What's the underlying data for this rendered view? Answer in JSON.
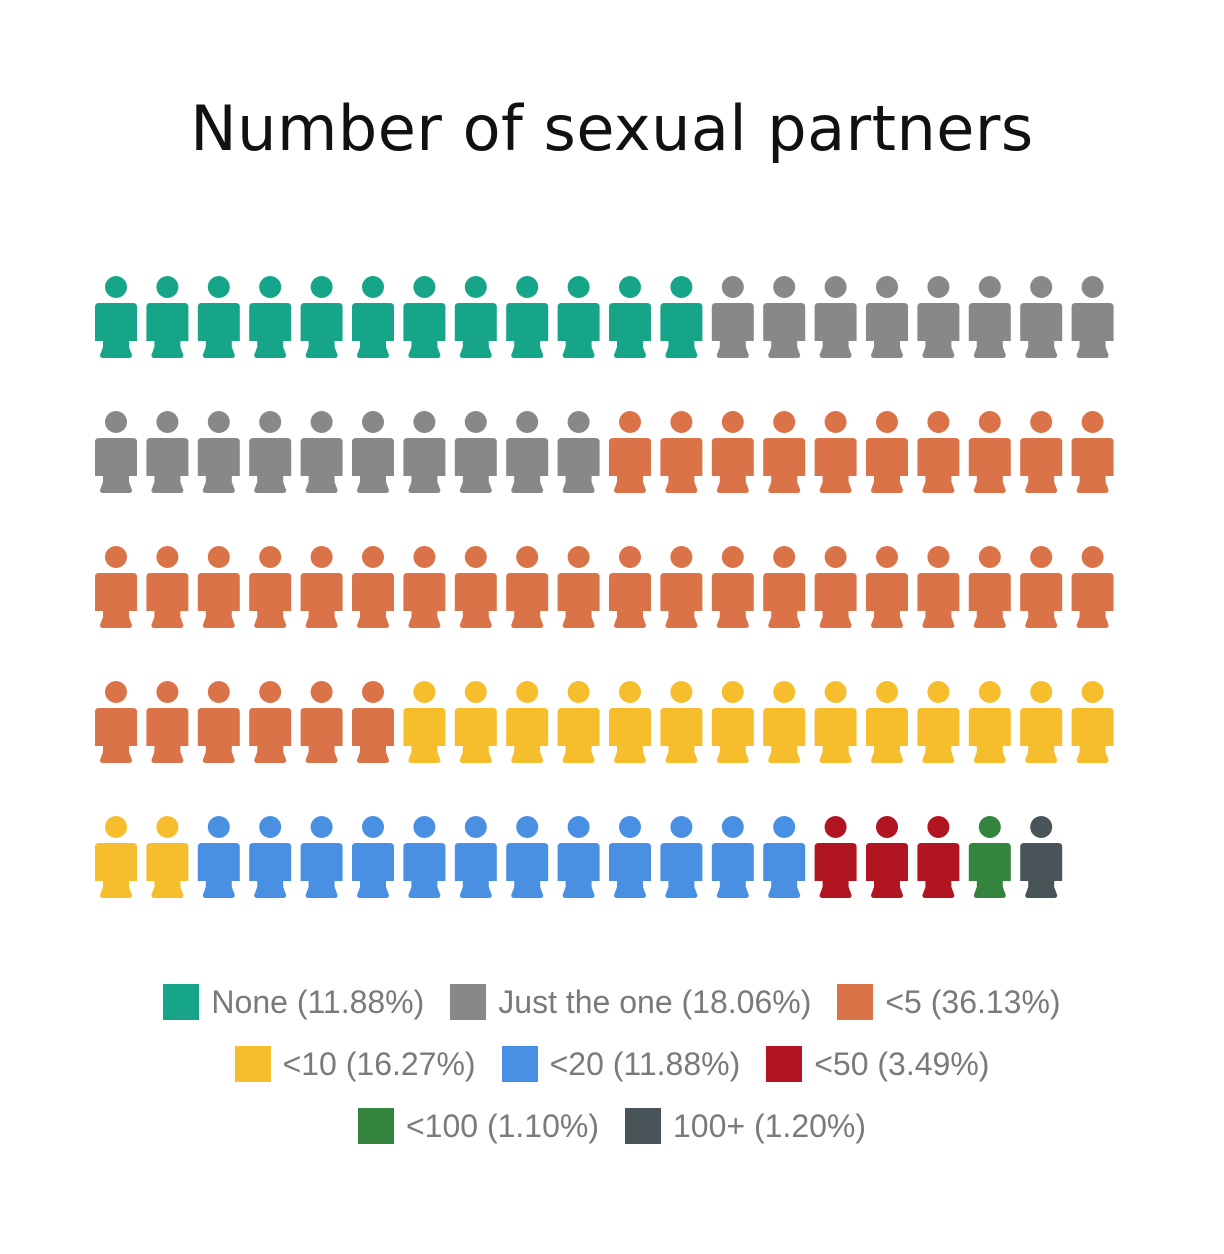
{
  "chart_data": {
    "type": "waffle",
    "title": "Number of sexual partners",
    "columns": 20,
    "series": [
      {
        "name": "None",
        "percent": 11.88,
        "icons": 12,
        "color": "#17a589",
        "label": "None (11.88%)"
      },
      {
        "name": "Just the one",
        "percent": 18.06,
        "icons": 18,
        "color": "#888888",
        "label": "Just the one (18.06%)"
      },
      {
        "name": "<5",
        "percent": 36.13,
        "icons": 36,
        "color": "#db7349",
        "label": "<5 (36.13%)"
      },
      {
        "name": "<10",
        "percent": 16.27,
        "icons": 16,
        "color": "#f6be2c",
        "label": "<10 (16.27%)"
      },
      {
        "name": "<20",
        "percent": 11.88,
        "icons": 12,
        "color": "#4a90e2",
        "label": "<20 (11.88%)"
      },
      {
        "name": "<50",
        "percent": 3.49,
        "icons": 3,
        "color": "#b11522",
        "label": "<50 (3.49%)"
      },
      {
        "name": "<100",
        "percent": 1.1,
        "icons": 1,
        "color": "#34843e",
        "label": "<100 (1.10%)"
      },
      {
        "name": "100+",
        "percent": 1.2,
        "icons": 1,
        "color": "#485457",
        "label": "100+ (1.20%)"
      }
    ],
    "legend_placement": "bottom"
  },
  "icon": "person-icon"
}
